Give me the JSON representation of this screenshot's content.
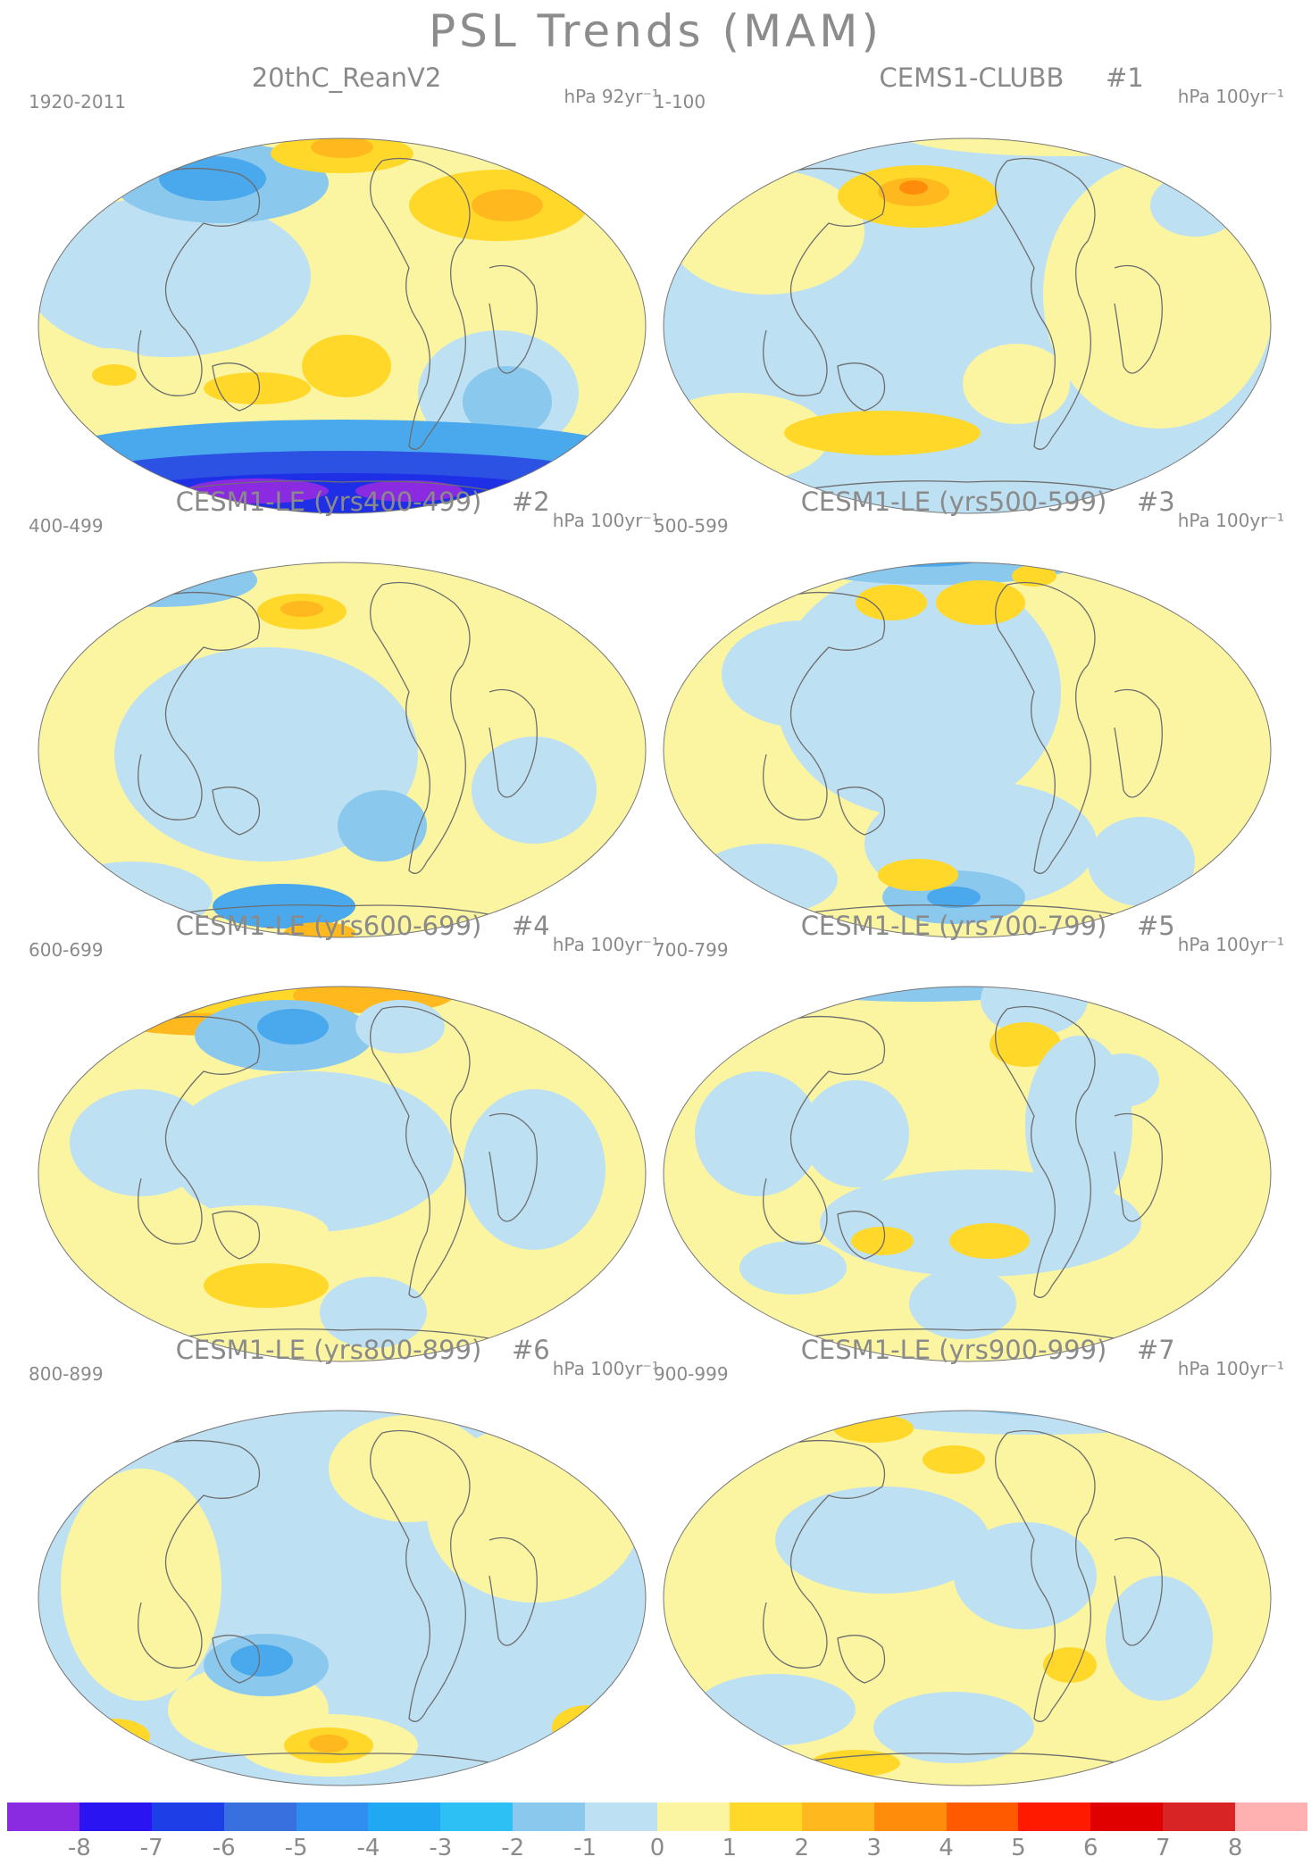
{
  "figure": {
    "title": "PSL Trends (MAM)"
  },
  "panels": [
    {
      "title": "20thC_ReanV2",
      "number": "",
      "period": "1920-2011",
      "units": "hPa 92yr⁻¹"
    },
    {
      "title": "CEMS1-CLUBB",
      "number": "#1",
      "period": "1-100",
      "units": "hPa 100yr⁻¹"
    },
    {
      "title": "CESM1-LE (yrs400-499)",
      "number": "#2",
      "period": "400-499",
      "units": "hPa 100yr⁻¹"
    },
    {
      "title": "CESM1-LE (yrs500-599)",
      "number": "#3",
      "period": "500-599",
      "units": "hPa 100yr⁻¹"
    },
    {
      "title": "CESM1-LE (yrs600-699)",
      "number": "#4",
      "period": "600-699",
      "units": "hPa 100yr⁻¹"
    },
    {
      "title": "CESM1-LE (yrs700-799)",
      "number": "#5",
      "period": "700-799",
      "units": "hPa 100yr⁻¹"
    },
    {
      "title": "CESM1-LE (yrs800-899)",
      "number": "#6",
      "period": "800-899",
      "units": "hPa 100yr⁻¹"
    },
    {
      "title": "CESM1-LE (yrs900-999)",
      "number": "#7",
      "period": "900-999",
      "units": "hPa 100yr⁻¹"
    }
  ],
  "colorbar": {
    "labels": [
      "-8",
      "-7",
      "-6",
      "-5",
      "-4",
      "-3",
      "-2",
      "-1",
      "0",
      "1",
      "2",
      "3",
      "4",
      "5",
      "6",
      "7",
      "8"
    ],
    "colors": [
      "#8a2be2",
      "#2b14f2",
      "#1e3ee8",
      "#3870e0",
      "#2f8ef0",
      "#21a8f2",
      "#2cc0f4",
      "#8ac8ee",
      "#bde0f2",
      "#fbf5a2",
      "#ffd82a",
      "#ffb81e",
      "#ff8c0a",
      "#ff5a00",
      "#ff1a00",
      "#e00000",
      "#d82424",
      "#ffb0b0"
    ]
  },
  "palette": {
    "ocean_neutral_neg": "#bde0f2",
    "neutral_pos": "#fbf5a2",
    "coast": "#6e6e6e"
  }
}
